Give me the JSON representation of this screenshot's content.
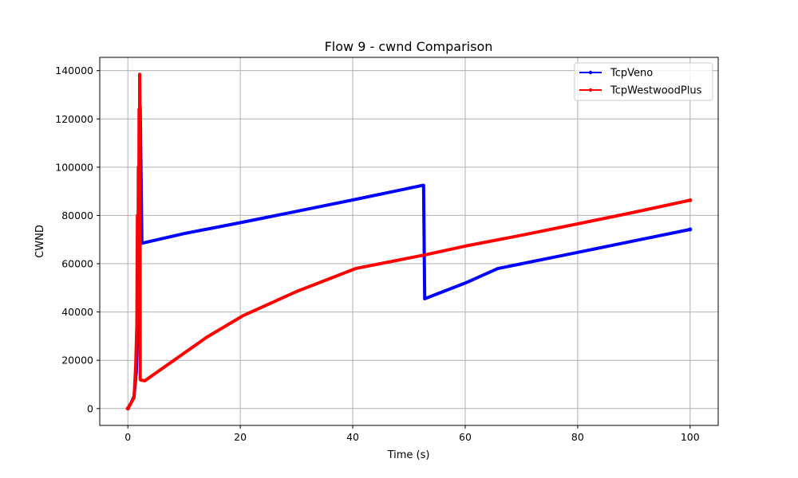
{
  "chart_data": {
    "type": "line",
    "title": "Flow 9 - cwnd Comparison",
    "xlabel": "Time (s)",
    "ylabel": "CWND",
    "xlim": [
      -5,
      105
    ],
    "ylim": [
      -7000,
      145500
    ],
    "xticks": [
      0,
      20,
      40,
      60,
      80,
      100
    ],
    "yticks": [
      0,
      20000,
      40000,
      60000,
      80000,
      100000,
      120000,
      140000
    ],
    "grid": true,
    "legend_position": "top-right",
    "series": [
      {
        "name": "TcpVeno",
        "color": "#0000ff",
        "x": [
          0,
          0.6,
          1.1,
          1.5,
          1.8,
          2.0,
          2.2,
          2.5,
          10,
          20,
          30,
          40,
          52.5,
          52.6,
          52.8,
          60,
          65.8,
          80,
          100
        ],
        "y": [
          0,
          2500,
          5000,
          15000,
          40000,
          80000,
          125000,
          68500,
          72500,
          77000,
          81700,
          86400,
          92500,
          92500,
          45500,
          52000,
          58000,
          64700,
          74200
        ]
      },
      {
        "name": "TcpWestwoodPlus",
        "color": "#ff0000",
        "x": [
          0,
          0.6,
          1.1,
          1.4,
          1.6,
          1.7,
          1.8,
          1.85,
          1.9,
          2.0,
          2.05,
          2.1,
          2.15,
          2.2,
          2.3,
          3.0,
          14,
          20.5,
          30,
          40.5,
          52.5,
          60,
          70,
          80,
          90,
          100
        ],
        "y": [
          0,
          2500,
          4500,
          18000,
          35000,
          80000,
          36000,
          100000,
          37000,
          124000,
          40000,
          138500,
          125000,
          12000,
          11800,
          11500,
          29500,
          38500,
          48500,
          58000,
          63500,
          67300,
          71800,
          76500,
          81300,
          86300
        ]
      }
    ]
  }
}
